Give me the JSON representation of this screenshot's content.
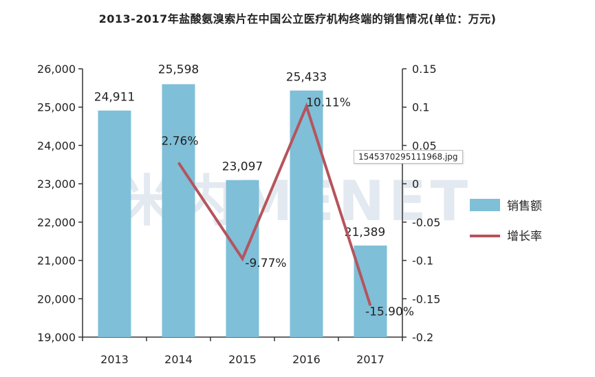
{
  "tooltip": "1545370295111968.jpg",
  "watermark": "米内MENET",
  "colors": {
    "bar": "#7fbfd8",
    "line": "#b5545c",
    "axis": "#333333",
    "watermark": "#e3e9f0"
  },
  "chart_data": {
    "type": "bar",
    "title": "2013-2017年盐酸氨溴索片在中国公立医疗机构终端的销售情况(单位：万元)",
    "categories": [
      "2013",
      "2014",
      "2015",
      "2016",
      "2017"
    ],
    "series": [
      {
        "name": "销售额",
        "type": "bar",
        "axis": "left",
        "values": [
          24911,
          25598,
          23097,
          25433,
          21389
        ],
        "labels": [
          "24,911",
          "25,598",
          "23,097",
          "25,433",
          "21,389"
        ]
      },
      {
        "name": "增长率",
        "type": "line",
        "axis": "right",
        "values": [
          null,
          0.0276,
          -0.0977,
          0.1011,
          -0.159
        ],
        "labels": [
          "",
          "2.76%",
          "-9.77%",
          "10.11%",
          "-15.90%"
        ]
      }
    ],
    "ylim_left": [
      19000,
      26000
    ],
    "yticks_left": [
      "19,000",
      "20,000",
      "21,000",
      "22,000",
      "23,000",
      "24,000",
      "25,000",
      "26,000"
    ],
    "ylim_right": [
      -0.2,
      0.15
    ],
    "yticks_right": [
      "-0.2",
      "-0.15",
      "-0.1",
      "-0.05",
      "0",
      "0.05",
      "0.1",
      "0.15"
    ],
    "grid": false,
    "legend": "right"
  }
}
